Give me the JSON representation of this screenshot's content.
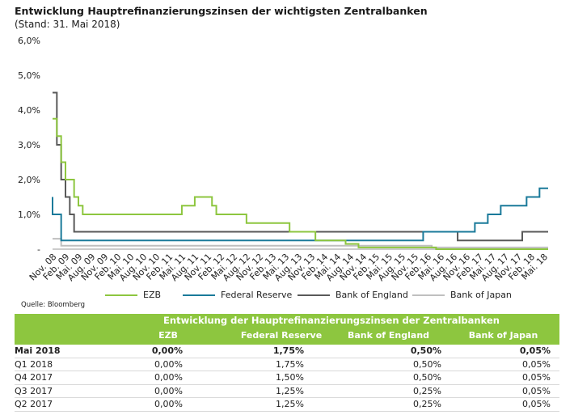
{
  "title": "Entwicklung  Hauptrefinanzierungszinsen  der wichtigsten  Zentralbanken",
  "subtitle": "(Stand: 31. Mai 2018)",
  "source": "Quelle: Bloomberg",
  "chart_data": {
    "type": "line",
    "y_ticks": [
      "6,0%",
      "5,0%",
      "4,0%",
      "3,0%",
      "2,0%",
      "1,0%",
      "-"
    ],
    "ylim": [
      0,
      6
    ],
    "x_ticks": [
      "Nov. 08",
      "Feb. 09",
      "Mai. 09",
      "Aug. 09",
      "Nov. 09",
      "Feb. 10",
      "Mai. 10",
      "Aug. 10",
      "Nov. 10",
      "Feb. 11",
      "Mai. 11",
      "Aug. 11",
      "Nov. 11",
      "Feb. 12",
      "Mai. 12",
      "Aug. 12",
      "Nov. 12",
      "Feb. 13",
      "Mai. 13",
      "Aug. 13",
      "Nov. 13",
      "Feb. 14",
      "Mai. 14",
      "Aug. 14",
      "Nov. 14",
      "Feb. 15",
      "Mai. 15",
      "Aug. 15",
      "Nov. 15",
      "Feb. 16",
      "Mai. 16",
      "Aug. 16",
      "Nov. 16",
      "Feb. 17",
      "Mai. 17",
      "Aug. 17",
      "Nov. 17",
      "Feb. 18",
      "Mai. 18"
    ],
    "x_range": [
      "2008-10",
      "2018-05"
    ],
    "series": [
      {
        "name": "EZB",
        "color": "#8dc63f",
        "points": [
          [
            "2008-10",
            3.75
          ],
          [
            "2008-11",
            3.25
          ],
          [
            "2008-12",
            2.5
          ],
          [
            "2009-01",
            2.0
          ],
          [
            "2009-03",
            1.5
          ],
          [
            "2009-04",
            1.25
          ],
          [
            "2009-05",
            1.0
          ],
          [
            "2011-04",
            1.25
          ],
          [
            "2011-07",
            1.5
          ],
          [
            "2011-11",
            1.25
          ],
          [
            "2011-12",
            1.0
          ],
          [
            "2012-07",
            0.75
          ],
          [
            "2013-05",
            0.5
          ],
          [
            "2013-11",
            0.25
          ],
          [
            "2014-06",
            0.15
          ],
          [
            "2014-09",
            0.05
          ],
          [
            "2016-03",
            0.0
          ],
          [
            "2018-05",
            0.0
          ]
        ]
      },
      {
        "name": "Federal Reserve",
        "color": "#1a7a9a",
        "points": [
          [
            "2008-10",
            1.5
          ],
          [
            "2008-10",
            1.0
          ],
          [
            "2008-12",
            0.25
          ],
          [
            "2015-12",
            0.5
          ],
          [
            "2016-12",
            0.75
          ],
          [
            "2017-03",
            1.0
          ],
          [
            "2017-06",
            1.25
          ],
          [
            "2017-12",
            1.5
          ],
          [
            "2018-03",
            1.75
          ],
          [
            "2018-05",
            1.75
          ]
        ]
      },
      {
        "name": "Bank of England",
        "color": "#595959",
        "points": [
          [
            "2008-10",
            4.5
          ],
          [
            "2008-11",
            3.0
          ],
          [
            "2008-12",
            2.0
          ],
          [
            "2009-01",
            1.5
          ],
          [
            "2009-02",
            1.0
          ],
          [
            "2009-03",
            0.5
          ],
          [
            "2016-08",
            0.25
          ],
          [
            "2017-11",
            0.5
          ],
          [
            "2018-05",
            0.5
          ]
        ]
      },
      {
        "name": "Bank of Japan",
        "color": "#bfbfbf",
        "points": [
          [
            "2008-10",
            0.3
          ],
          [
            "2008-12",
            0.1
          ],
          [
            "2016-02",
            0.05
          ],
          [
            "2018-05",
            0.05
          ]
        ]
      }
    ]
  },
  "legend": [
    {
      "name": "EZB",
      "color": "#8dc63f"
    },
    {
      "name": "Federal Reserve",
      "color": "#1a7a9a"
    },
    {
      "name": "Bank of England",
      "color": "#595959"
    },
    {
      "name": "Bank of Japan",
      "color": "#bfbfbf"
    }
  ],
  "table": {
    "title": "Entwicklung der Hauptrefinanzierungszinsen der Zentralbanken",
    "columns": [
      "",
      "EZB",
      "Federal Reserve",
      "Bank of England",
      "Bank of Japan"
    ],
    "rows": [
      {
        "label": "Mai 2018",
        "bold": true,
        "values": [
          "0,00%",
          "1,75%",
          "0,50%",
          "0,05%"
        ]
      },
      {
        "label": "Q1 2018",
        "bold": false,
        "values": [
          "0,00%",
          "1,75%",
          "0,50%",
          "0,05%"
        ]
      },
      {
        "label": "Q4 2017",
        "bold": false,
        "values": [
          "0,00%",
          "1,50%",
          "0,50%",
          "0,05%"
        ]
      },
      {
        "label": "Q3 2017",
        "bold": false,
        "values": [
          "0,00%",
          "1,25%",
          "0,25%",
          "0,05%"
        ]
      },
      {
        "label": "Q2 2017",
        "bold": false,
        "values": [
          "0,00%",
          "1,25%",
          "0,25%",
          "0,05%"
        ]
      }
    ]
  }
}
